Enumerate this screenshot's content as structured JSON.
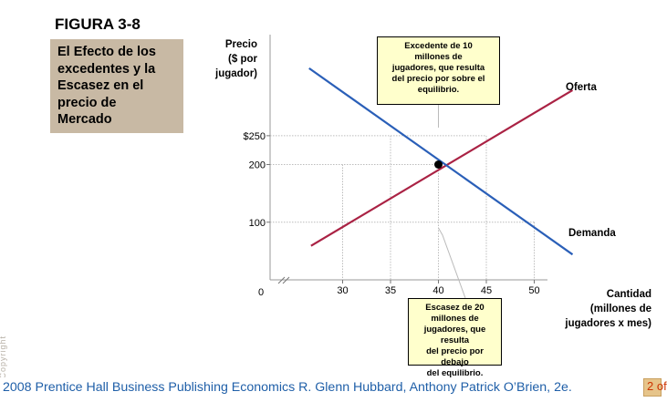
{
  "figure_label": "FIGURA 3-8",
  "side_panel": {
    "lines": [
      "El Efecto de los",
      "excedentes y la",
      "Escasez en el",
      "precio de",
      "Mercado"
    ]
  },
  "notes": {
    "excess": [
      "Excedente de 10",
      "millones de",
      "jugadores, que resulta",
      "del precio por sobre el",
      "equilibrio."
    ],
    "shortage": [
      "Escasez de 20",
      "millones de",
      "jugadores, que resulta",
      "del precio por debajo",
      "del equilibrio."
    ]
  },
  "side_mark": "Copyright",
  "footer": {
    "text": "2008 Prentice Hall Business Publishing   Economics  R. Glenn Hubbard, Anthony Patrick O’Brien, 2e.",
    "page": "2 of"
  },
  "chart_data": {
    "type": "line",
    "ylabel_lines": [
      "Precio",
      "($ por",
      "jugador)"
    ],
    "xlabel_lines": [
      "Cantidad",
      "(millones de",
      "jugadores x mes)"
    ],
    "origin_label": "0",
    "x_ticks": [
      {
        "value": 30,
        "label": "30"
      },
      {
        "value": 35,
        "label": "35"
      },
      {
        "value": 40,
        "label": "40"
      },
      {
        "value": 45,
        "label": "45"
      },
      {
        "value": 50,
        "label": "50"
      }
    ],
    "y_ticks": [
      {
        "value": 100,
        "label": "100"
      },
      {
        "value": 200,
        "label": "200"
      },
      {
        "value": 250,
        "label": "$250"
      }
    ],
    "series": [
      {
        "name": "Oferta",
        "color": "#aa2244",
        "points": [
          [
            26.7,
            59
          ],
          [
            54,
            329
          ]
        ]
      },
      {
        "name": "Demanda",
        "color": "#2a5fb8",
        "points": [
          [
            26.5,
            367
          ],
          [
            54,
            44
          ]
        ]
      }
    ],
    "equilibrium": {
      "x": 40,
      "y": 200
    },
    "guides": [
      {
        "from": [
          30,
          200
        ],
        "to": [
          30,
          0
        ]
      },
      {
        "from": [
          35,
          250
        ],
        "to": [
          35,
          0
        ]
      },
      {
        "from": [
          40,
          200
        ],
        "to": [
          40,
          0
        ]
      },
      {
        "from": [
          45,
          250
        ],
        "to": [
          45,
          0
        ]
      },
      {
        "from": [
          50,
          100
        ],
        "to": [
          50,
          0
        ]
      },
      {
        "from": [
          0,
          250
        ],
        "to": [
          45,
          250
        ]
      },
      {
        "from": [
          0,
          200
        ],
        "to": [
          40,
          200
        ]
      },
      {
        "from": [
          0,
          100
        ],
        "to": [
          50,
          100
        ]
      }
    ]
  }
}
